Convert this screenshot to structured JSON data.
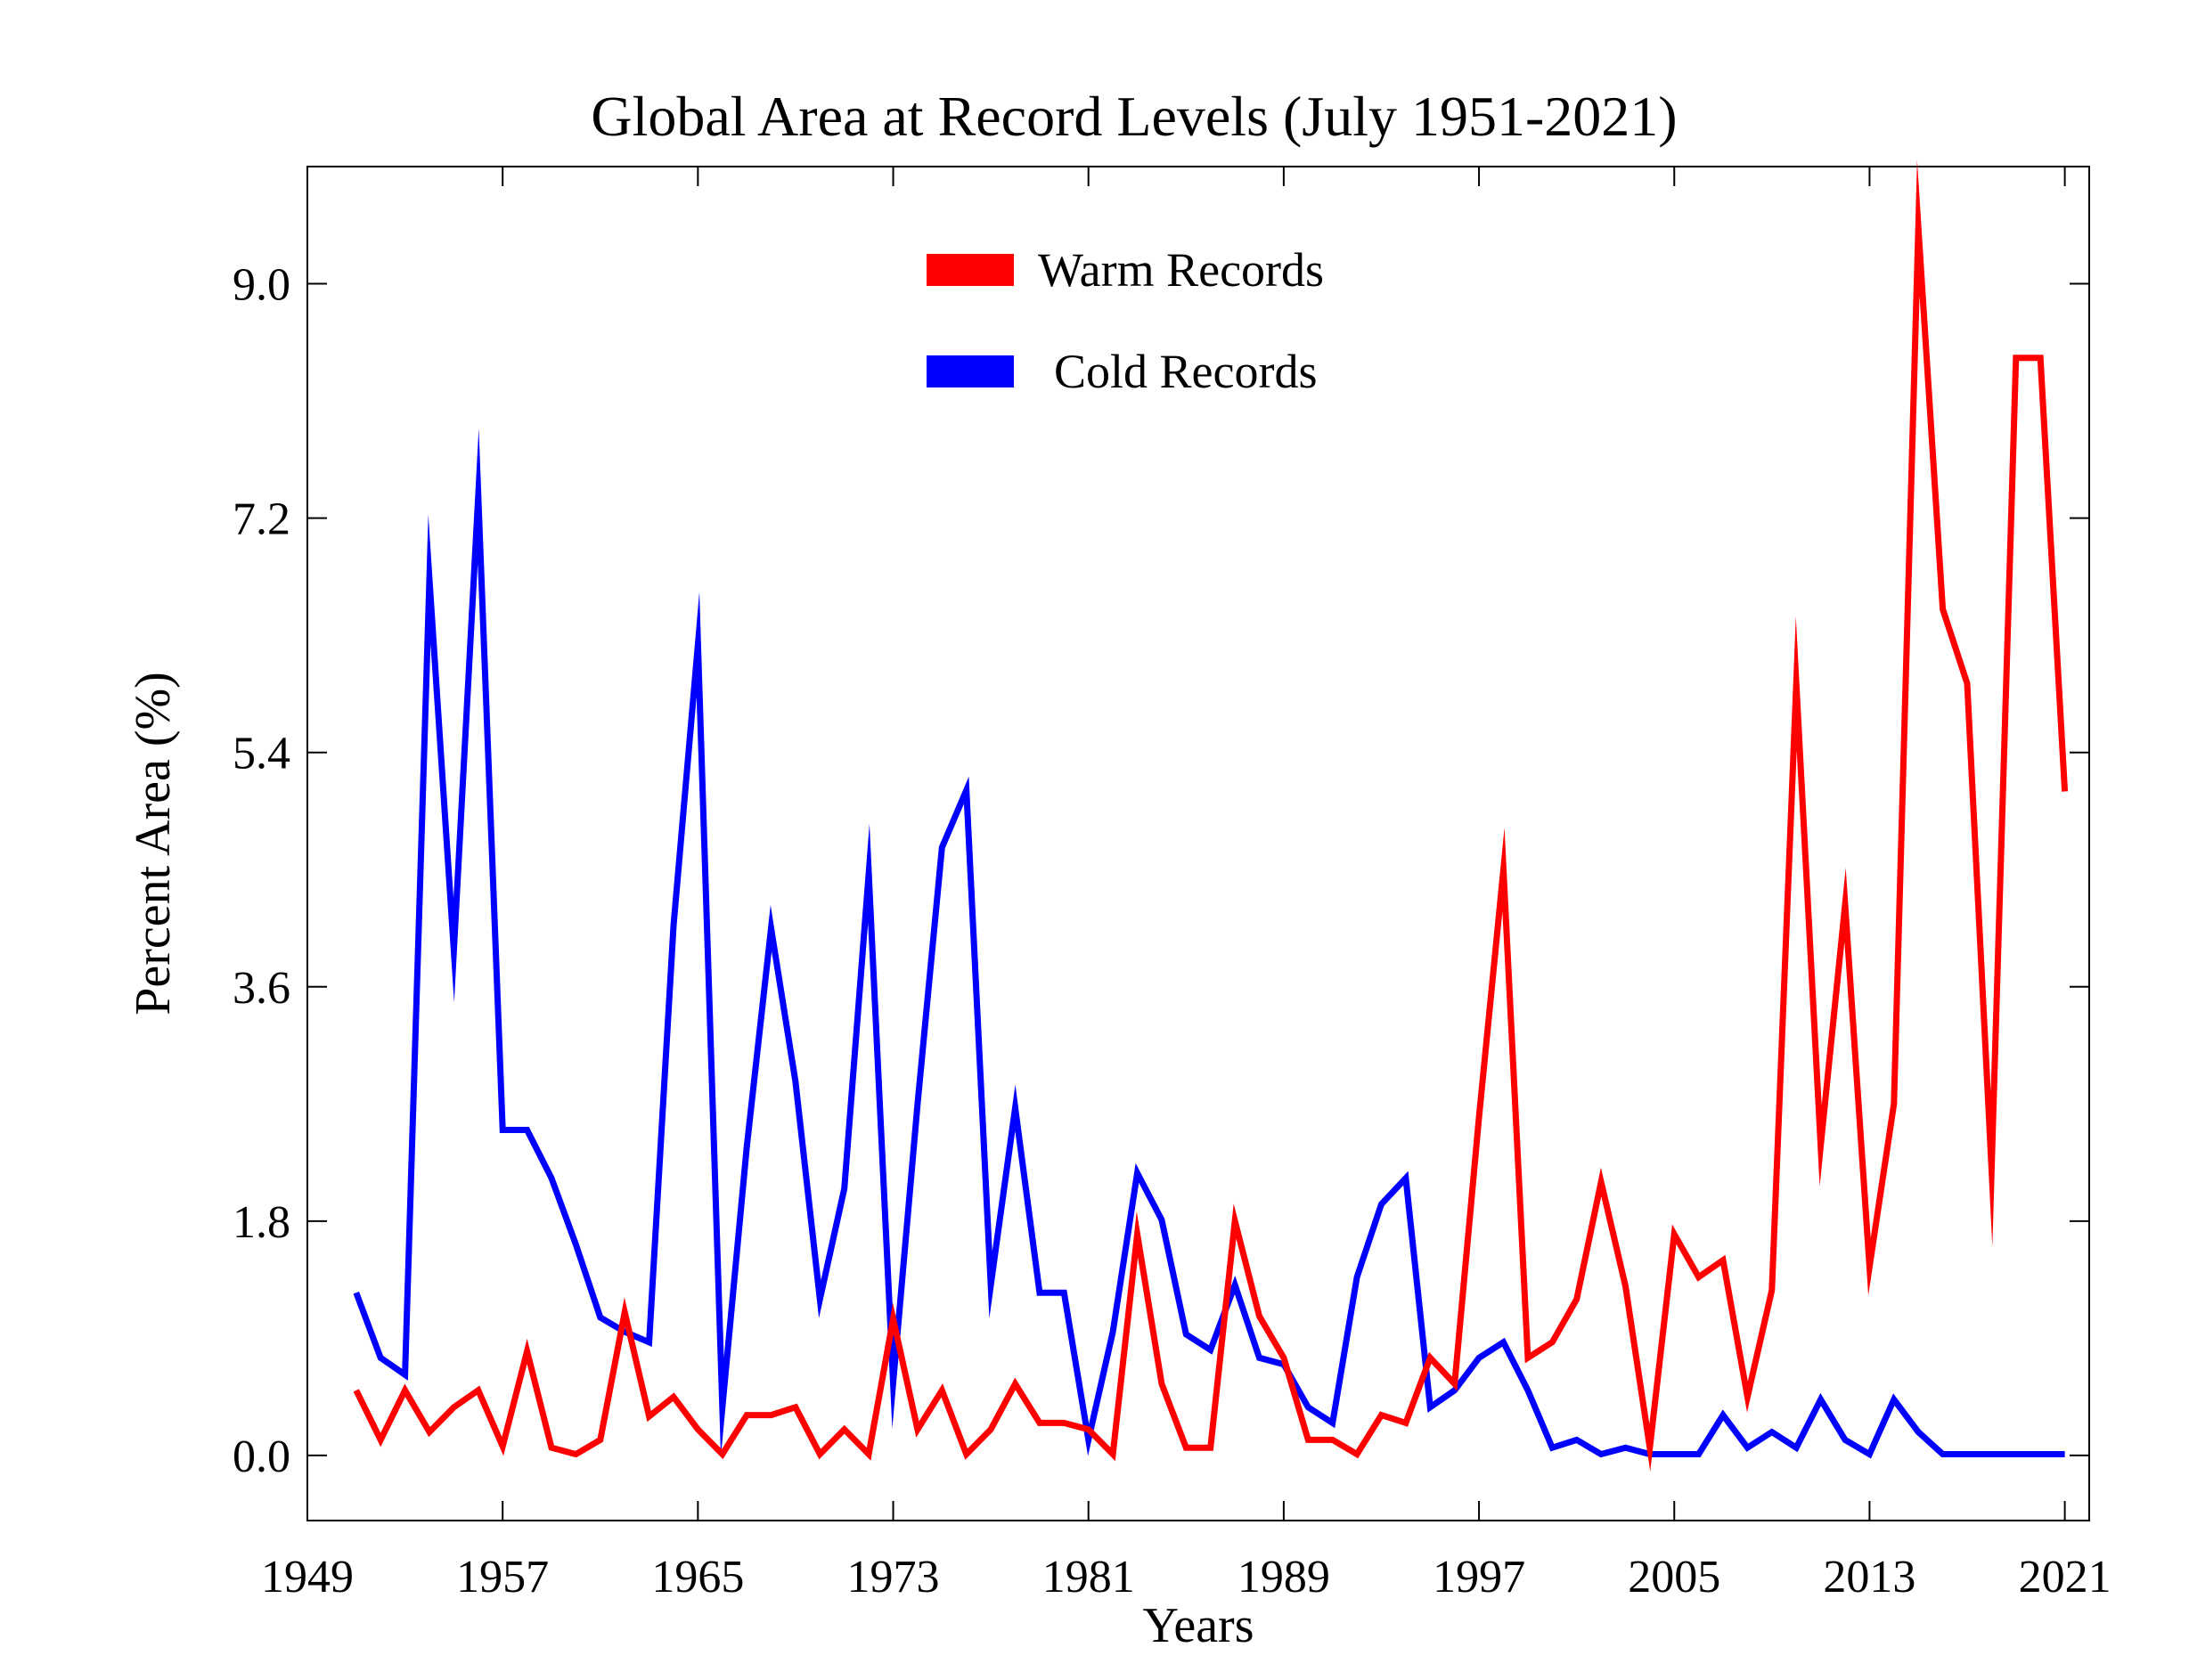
{
  "chart_data": {
    "type": "line",
    "title": "Global Area at Record Levels (July 1951-2021)",
    "xlabel": "Years",
    "ylabel": "Percent Area (%)",
    "xlim": [
      1949,
      2022
    ],
    "ylim": [
      -0.5,
      9.9
    ],
    "xticks": [
      1949,
      1957,
      1965,
      1973,
      1981,
      1989,
      1997,
      2005,
      2013,
      2021
    ],
    "yticks": [
      0.0,
      1.8,
      3.6,
      5.4,
      7.2,
      9.0
    ],
    "ytick_labels": [
      "0.0",
      "1.8",
      "3.6",
      "5.4",
      "7.2",
      "9.0"
    ],
    "legend_position": "top-center",
    "grid": false,
    "x": [
      1951,
      1952,
      1953,
      1954,
      1955,
      1956,
      1957,
      1958,
      1959,
      1960,
      1961,
      1962,
      1963,
      1964,
      1965,
      1966,
      1967,
      1968,
      1969,
      1970,
      1971,
      1972,
      1973,
      1974,
      1975,
      1976,
      1977,
      1978,
      1979,
      1980,
      1981,
      1982,
      1983,
      1984,
      1985,
      1986,
      1987,
      1988,
      1989,
      1990,
      1991,
      1992,
      1993,
      1994,
      1995,
      1996,
      1997,
      1998,
      1999,
      2000,
      2001,
      2002,
      2003,
      2004,
      2005,
      2006,
      2007,
      2008,
      2009,
      2010,
      2011,
      2012,
      2013,
      2014,
      2015,
      2016,
      2017,
      2018,
      2019,
      2020,
      2021
    ],
    "series": [
      {
        "name": "Warm Records",
        "color": "#ff0000",
        "values": [
          0.5,
          0.12,
          0.5,
          0.18,
          0.37,
          0.5,
          0.07,
          0.8,
          0.06,
          0.01,
          0.12,
          1.1,
          0.3,
          0.45,
          0.2,
          0.01,
          0.31,
          0.31,
          0.37,
          0.01,
          0.2,
          0.01,
          1.05,
          0.2,
          0.5,
          0.01,
          0.2,
          0.55,
          0.25,
          0.25,
          0.2,
          0.01,
          1.7,
          0.55,
          0.06,
          0.06,
          1.8,
          1.07,
          0.75,
          0.12,
          0.12,
          0.01,
          0.31,
          0.25,
          0.75,
          0.55,
          2.6,
          4.5,
          0.75,
          0.87,
          1.2,
          2.1,
          1.3,
          0.06,
          1.7,
          1.37,
          1.5,
          0.45,
          1.27,
          5.93,
          2.38,
          4.23,
          1.45,
          2.7,
          9.43,
          6.5,
          5.93,
          2.2,
          8.43,
          8.43,
          5.1
        ]
      },
      {
        "name": "Cold Records",
        "color": "#0000ff",
        "values": [
          1.25,
          0.75,
          0.62,
          6.73,
          3.88,
          7.37,
          2.5,
          2.5,
          2.13,
          1.62,
          1.06,
          0.95,
          0.87,
          4.07,
          6.23,
          0.37,
          2.37,
          4.05,
          2.87,
          1.2,
          2.05,
          4.47,
          0.56,
          2.7,
          4.67,
          5.11,
          1.31,
          2.67,
          1.25,
          1.25,
          0.12,
          0.95,
          2.17,
          1.81,
          0.93,
          0.81,
          1.31,
          0.75,
          0.7,
          0.37,
          0.25,
          1.37,
          1.93,
          2.13,
          0.37,
          0.5,
          0.75,
          0.87,
          0.5,
          0.06,
          0.12,
          0.01,
          0.06,
          0.01,
          0.01,
          0.01,
          0.31,
          0.06,
          0.18,
          0.06,
          0.43,
          0.12,
          0.01,
          0.43,
          0.18,
          0.01,
          0.01,
          0.01,
          0.01,
          0.01,
          0.01
        ]
      }
    ]
  }
}
